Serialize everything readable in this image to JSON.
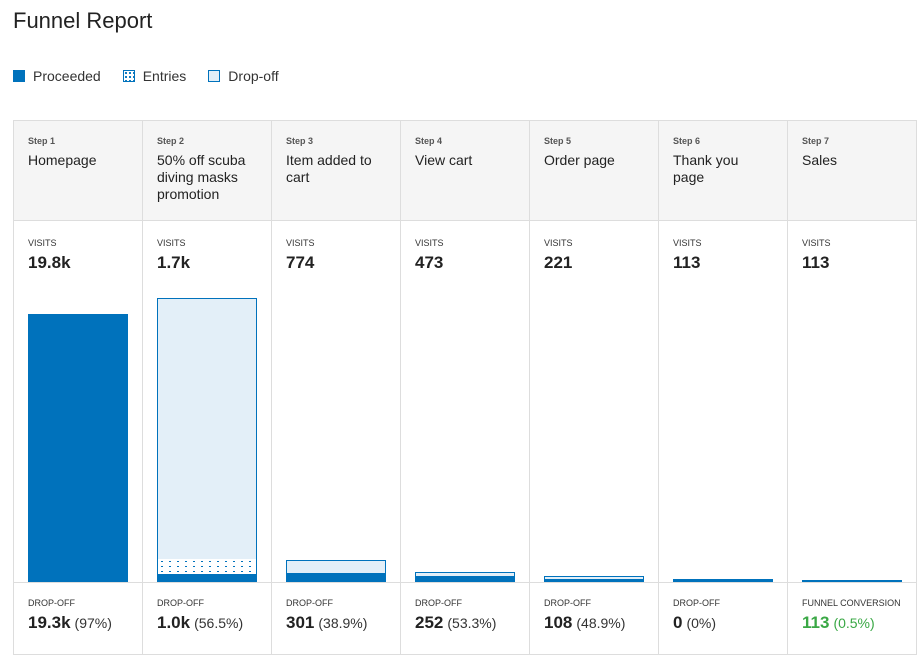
{
  "title": "Funnel Report",
  "legend": [
    "Proceeded",
    "Entries",
    "Drop-off"
  ],
  "colors": {
    "proceeded": "#0072bc",
    "dropoff": "#e3eff8",
    "conversion": "#3aa845"
  },
  "visits_label": "VISITS",
  "chart_data": {
    "type": "bar",
    "steps": [
      {
        "step": "Step 1",
        "name": "Homepage",
        "visits": "19.8k",
        "drop_label": "DROP-OFF",
        "drop": "19.3k",
        "pct": "(97%)"
      },
      {
        "step": "Step 2",
        "name": "50% off scuba diving masks promotion",
        "visits": "1.7k",
        "drop_label": "DROP-OFF",
        "drop": "1.0k",
        "pct": "(56.5%)"
      },
      {
        "step": "Step 3",
        "name": "Item added to cart",
        "visits": "774",
        "drop_label": "DROP-OFF",
        "drop": "301",
        "pct": "(38.9%)"
      },
      {
        "step": "Step 4",
        "name": "View cart",
        "visits": "473",
        "drop_label": "DROP-OFF",
        "drop": "252",
        "pct": "(53.3%)"
      },
      {
        "step": "Step 5",
        "name": "Order page",
        "visits": "221",
        "drop_label": "DROP-OFF",
        "drop": "108",
        "pct": "(48.9%)"
      },
      {
        "step": "Step 6",
        "name": "Thank you page",
        "visits": "113",
        "drop_label": "DROP-OFF",
        "drop": "0",
        "pct": "(0%)"
      },
      {
        "step": "Step 7",
        "name": "Sales",
        "visits": "113",
        "drop_label": "FUNNEL CONVERSION",
        "drop": "113",
        "pct": "(0.5%)"
      }
    ]
  }
}
